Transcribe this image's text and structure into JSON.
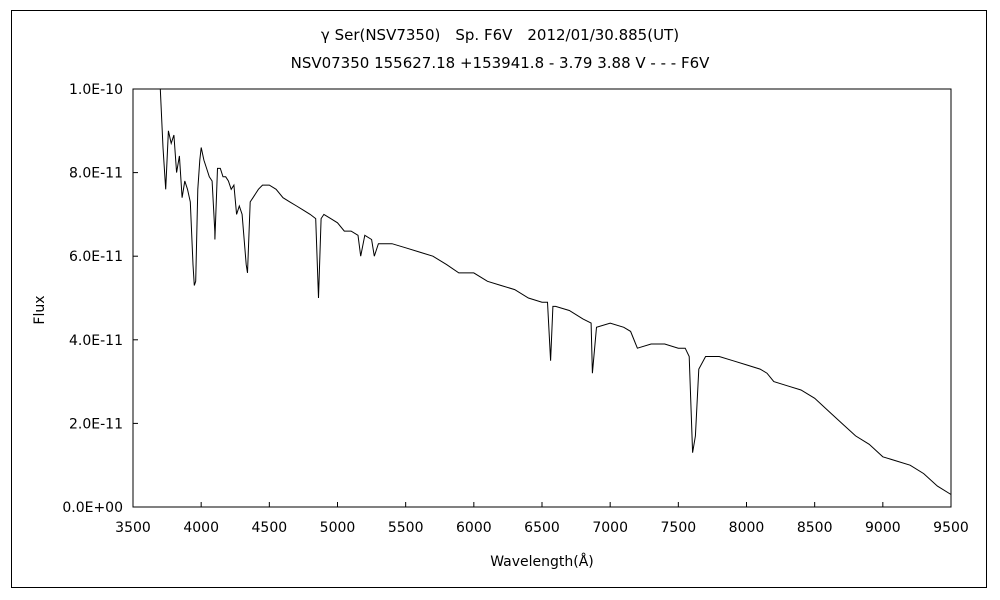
{
  "chart_data": {
    "type": "line",
    "title": "γ Ser(NSV7350)　Sp. F6V　2012/01/30.885(UT)",
    "subtitle": "NSV07350 155627.18 +153941.8 - 3.79 3.88 V - - - F6V",
    "xlabel": "Wavelength(Å)",
    "ylabel": "Flux",
    "xlim": [
      3500,
      9500
    ],
    "ylim": [
      0,
      1e-10
    ],
    "x_ticks": [
      "3500",
      "4000",
      "4500",
      "5000",
      "5500",
      "6000",
      "6500",
      "7000",
      "7500",
      "8000",
      "8500",
      "9000",
      "9500"
    ],
    "y_ticks": [
      "0.0E+00",
      "2.0E-11",
      "4.0E-11",
      "6.0E-11",
      "8.0E-11",
      "1.0E-10"
    ],
    "grid": false,
    "legend": "none",
    "series": [
      {
        "x": [
          3700,
          3720,
          3740,
          3760,
          3780,
          3800,
          3820,
          3840,
          3860,
          3880,
          3900,
          3920,
          3940,
          3950,
          3960,
          3975,
          3990,
          4000,
          4020,
          4040,
          4060,
          4080,
          4100,
          4101,
          4120,
          4140,
          4160,
          4180,
          4200,
          4220,
          4240,
          4260,
          4280,
          4300,
          4330,
          4340,
          4360,
          4380,
          4400,
          4420,
          4450,
          4500,
          4550,
          4600,
          4650,
          4700,
          4750,
          4800,
          4840,
          4861,
          4880,
          4900,
          4950,
          5000,
          5050,
          5100,
          5150,
          5170,
          5200,
          5250,
          5270,
          5300,
          5400,
          5500,
          5600,
          5700,
          5800,
          5890,
          5900,
          6000,
          6100,
          6200,
          6300,
          6400,
          6500,
          6540,
          6563,
          6580,
          6600,
          6700,
          6800,
          6860,
          6870,
          6900,
          7000,
          7100,
          7150,
          7200,
          7300,
          7400,
          7500,
          7550,
          7580,
          7605,
          7625,
          7650,
          7700,
          7800,
          7900,
          8000,
          8100,
          8150,
          8200,
          8300,
          8400,
          8500,
          8600,
          8700,
          8800,
          8900,
          9000,
          9100,
          9200,
          9300,
          9400,
          9500
        ],
        "y": [
          1e-10,
          8.6e-11,
          7.6e-11,
          9e-11,
          8.7e-11,
          8.9e-11,
          8e-11,
          8.4e-11,
          7.4e-11,
          7.8e-11,
          7.6e-11,
          7.3e-11,
          5.8e-11,
          5.3e-11,
          5.4e-11,
          7.6e-11,
          8.3e-11,
          8.6e-11,
          8.3e-11,
          8.1e-11,
          7.9e-11,
          7.8e-11,
          6.6e-11,
          6.4e-11,
          8.1e-11,
          8.1e-11,
          7.9e-11,
          7.9e-11,
          7.8e-11,
          7.6e-11,
          7.7e-11,
          7e-11,
          7.2e-11,
          7e-11,
          5.8e-11,
          5.6e-11,
          7.3e-11,
          7.4e-11,
          7.5e-11,
          7.6e-11,
          7.7e-11,
          7.7e-11,
          7.6e-11,
          7.4e-11,
          7.3e-11,
          7.2e-11,
          7.1e-11,
          7e-11,
          6.9e-11,
          5e-11,
          6.9e-11,
          7e-11,
          6.9e-11,
          6.8e-11,
          6.6e-11,
          6.6e-11,
          6.5e-11,
          6e-11,
          6.5e-11,
          6.4e-11,
          6e-11,
          6.3e-11,
          6.3e-11,
          6.2e-11,
          6.1e-11,
          6e-11,
          5.8e-11,
          5.6e-11,
          5.6e-11,
          5.6e-11,
          5.4e-11,
          5.3e-11,
          5.2e-11,
          5e-11,
          4.9e-11,
          4.9e-11,
          3.5e-11,
          4.8e-11,
          4.8e-11,
          4.7e-11,
          4.5e-11,
          4.4e-11,
          3.2e-11,
          4.3e-11,
          4.4e-11,
          4.3e-11,
          4.2e-11,
          3.8e-11,
          3.9e-11,
          3.9e-11,
          3.8e-11,
          3.8e-11,
          3.6e-11,
          1.3e-11,
          1.7e-11,
          3.3e-11,
          3.6e-11,
          3.6e-11,
          3.5e-11,
          3.4e-11,
          3.3e-11,
          3.2e-11,
          3e-11,
          2.9e-11,
          2.8e-11,
          2.6e-11,
          2.3e-11,
          2e-11,
          1.7e-11,
          1.5e-11,
          1.2e-11,
          1.1e-11,
          1e-11,
          8e-12,
          5e-12,
          3e-12
        ]
      }
    ]
  }
}
